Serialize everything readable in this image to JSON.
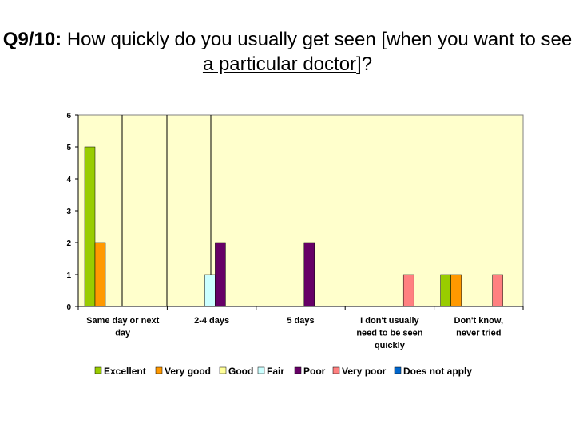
{
  "title": {
    "prefix": "Q9/10:",
    "part1": " How quickly do you usually get seen [when you want to see ",
    "underlined": "a particular doctor",
    "part2": "]?"
  },
  "colors": {
    "plot_background": "#FFFFCC",
    "Excellent": "#99CC00",
    "Very good": "#FF9900",
    "Good": "#FFFF99",
    "Fair": "#CCFFFF",
    "Poor": "#660066",
    "Very poor": "#FF8080",
    "Does not apply": "#0066CC"
  },
  "chart_data": {
    "type": "bar",
    "categories": [
      "Same day or next day",
      "2-4 days",
      "5 days",
      "I don't usually need to be seen quickly",
      "Don't know, never tried"
    ],
    "category_label_lines": [
      [
        "Same day or next",
        "day"
      ],
      [
        "2-4 days"
      ],
      [
        "5 days"
      ],
      [
        "I don't usually",
        "need to be seen",
        "quickly"
      ],
      [
        "Don't know,",
        "never tried"
      ]
    ],
    "series": [
      {
        "name": "Excellent",
        "values": [
          5,
          0,
          0,
          0,
          1
        ]
      },
      {
        "name": "Very good",
        "values": [
          2,
          0,
          0,
          0,
          1
        ]
      },
      {
        "name": "Good",
        "values": [
          0,
          0,
          0,
          0,
          0
        ]
      },
      {
        "name": "Fair",
        "values": [
          0,
          1,
          0,
          0,
          0
        ]
      },
      {
        "name": "Poor",
        "values": [
          0,
          2,
          2,
          0,
          0
        ]
      },
      {
        "name": "Very poor",
        "values": [
          0,
          0,
          0,
          1,
          1
        ]
      },
      {
        "name": "Does not apply",
        "values": [
          0,
          0,
          0,
          0,
          0
        ]
      }
    ],
    "ylim": [
      0,
      6
    ],
    "yticks": [
      "0",
      "1",
      "2",
      "3",
      "4",
      "5",
      "6"
    ],
    "xlabel": "",
    "ylabel": "",
    "legend_position": "bottom",
    "grid": false
  }
}
